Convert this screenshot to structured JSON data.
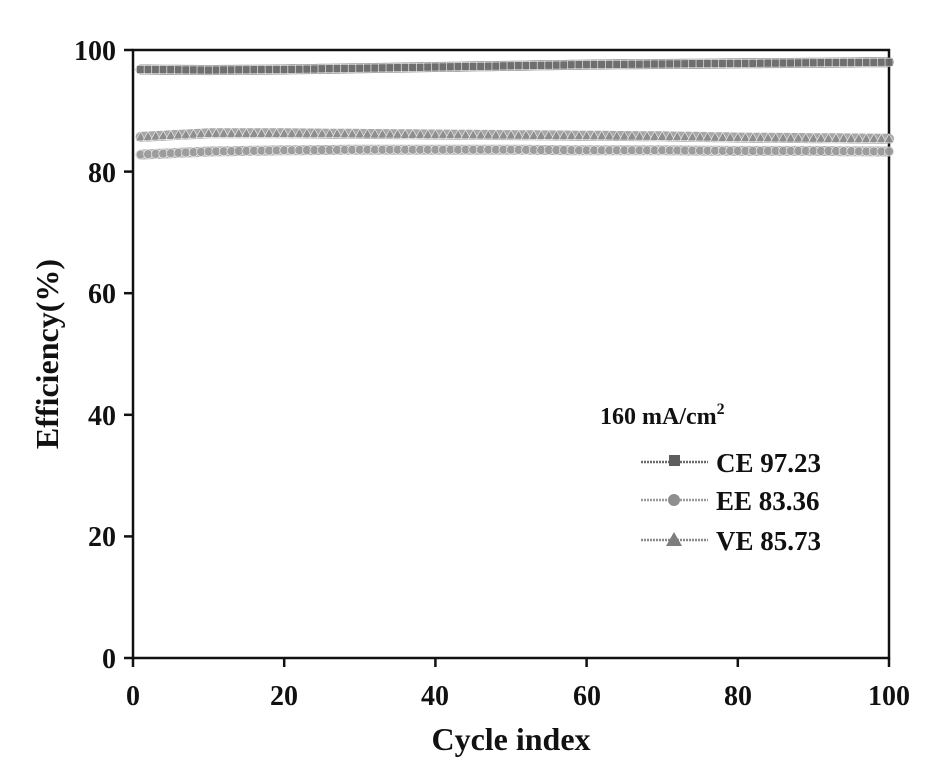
{
  "chart_data": {
    "type": "line",
    "title": "",
    "xlabel": "Cycle index",
    "ylabel": "Efficiency(%)",
    "xlim": [
      0,
      100
    ],
    "ylim": [
      0,
      100
    ],
    "xticks": [
      "0",
      "20",
      "40",
      "60",
      "80",
      "100"
    ],
    "yticks": [
      "0",
      "20",
      "40",
      "60",
      "80",
      "100"
    ],
    "grid": false,
    "legend_title_main": "160 mA/cm",
    "legend_title_sup": "2",
    "legend_position": "center-right",
    "series": [
      {
        "name": "CE",
        "label": "CE 97.23",
        "marker": "square",
        "x": [
          1,
          10,
          20,
          30,
          40,
          50,
          60,
          70,
          80,
          90,
          100
        ],
        "values": [
          96.8,
          96.7,
          96.8,
          97.0,
          97.2,
          97.4,
          97.6,
          97.7,
          97.8,
          97.9,
          98.0
        ]
      },
      {
        "name": "EE",
        "label": "EE 83.36",
        "marker": "circle",
        "x": [
          1,
          10,
          20,
          30,
          40,
          50,
          60,
          70,
          80,
          90,
          100
        ],
        "values": [
          82.8,
          83.3,
          83.5,
          83.6,
          83.6,
          83.6,
          83.5,
          83.5,
          83.4,
          83.4,
          83.3
        ]
      },
      {
        "name": "VE",
        "label": "VE 85.73",
        "marker": "triangle",
        "x": [
          1,
          10,
          20,
          30,
          40,
          50,
          60,
          70,
          80,
          90,
          100
        ],
        "values": [
          85.7,
          86.3,
          86.3,
          86.2,
          86.1,
          86.0,
          85.9,
          85.8,
          85.6,
          85.5,
          85.4
        ]
      }
    ]
  },
  "colors": {
    "CE": "#6a6a6a",
    "EE": "#9a9a9a",
    "VE": "#8a8a8a",
    "axis": "#111111"
  }
}
